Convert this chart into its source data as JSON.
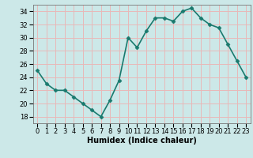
{
  "x": [
    0,
    1,
    2,
    3,
    4,
    5,
    6,
    7,
    8,
    9,
    10,
    11,
    12,
    13,
    14,
    15,
    16,
    17,
    18,
    19,
    20,
    21,
    22,
    23
  ],
  "y": [
    25,
    23,
    22,
    22,
    21,
    20,
    19,
    18,
    20.5,
    23.5,
    30,
    28.5,
    31,
    33,
    33,
    32.5,
    34,
    34.5,
    33,
    32,
    31.5,
    29,
    26.5,
    24
  ],
  "line_color": "#1a7a6e",
  "marker": "D",
  "marker_size": 2.5,
  "bg_color": "#cce8e8",
  "grid_color": "#e8b8b8",
  "xlabel": "Humidex (Indice chaleur)",
  "ylim": [
    17,
    35
  ],
  "xlim": [
    -0.5,
    23.5
  ],
  "yticks": [
    18,
    20,
    22,
    24,
    26,
    28,
    30,
    32,
    34
  ],
  "xtick_labels": [
    "0",
    "1",
    "2",
    "3",
    "4",
    "5",
    "6",
    "7",
    "8",
    "9",
    "10",
    "11",
    "12",
    "13",
    "14",
    "15",
    "16",
    "17",
    "18",
    "19",
    "20",
    "21",
    "22",
    "23"
  ],
  "linewidth": 1.2,
  "tick_fontsize": 6.0,
  "xlabel_fontsize": 7.0
}
